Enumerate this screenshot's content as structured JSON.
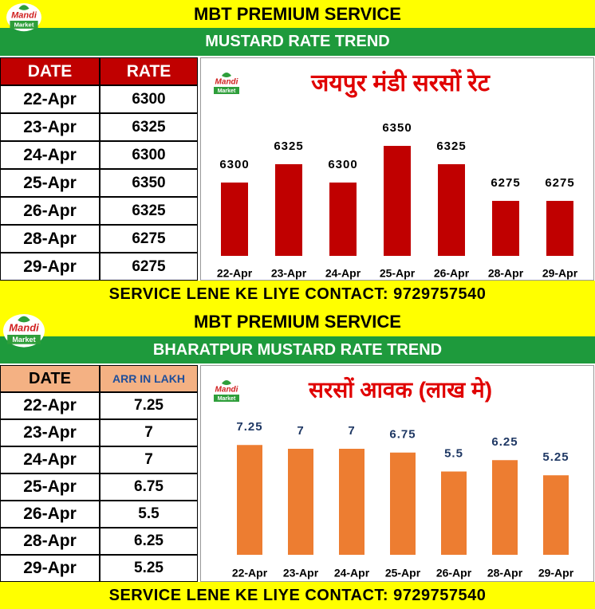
{
  "logo": {
    "top": "Mandi",
    "bottom": "Market"
  },
  "chart_data": [
    {
      "type": "bar",
      "title": "जयपुर मंडी सरसों रेट",
      "categories": [
        "22-Apr",
        "23-Apr",
        "24-Apr",
        "25-Apr",
        "26-Apr",
        "28-Apr",
        "29-Apr"
      ],
      "values": [
        6300,
        6325,
        6300,
        6350,
        6325,
        6275,
        6275
      ],
      "color": "#c00000",
      "ylim": [
        6200,
        6400
      ]
    },
    {
      "type": "bar",
      "title": "सरसों आवक (लाख मे)",
      "categories": [
        "22-Apr",
        "23-Apr",
        "24-Apr",
        "25-Apr",
        "26-Apr",
        "28-Apr",
        "29-Apr"
      ],
      "values": [
        7.25,
        7,
        7,
        6.75,
        5.5,
        6.25,
        5.25
      ],
      "color": "#ed7d31",
      "ylim": [
        0,
        10
      ]
    }
  ],
  "panels": [
    {
      "header": "MBT PREMIUM SERVICE",
      "subheader": "MUSTARD RATE TREND",
      "columns": [
        "DATE",
        "RATE"
      ],
      "footer": "SERVICE LENE KE LIYE CONTACT: 9729757540"
    },
    {
      "header": "MBT PREMIUM SERVICE",
      "subheader": "BHARATPUR MUSTARD RATE TREND",
      "columns": [
        "DATE",
        "ARR IN LAKH"
      ],
      "footer": "SERVICE LENE KE LIYE CONTACT: 9729757540"
    }
  ]
}
